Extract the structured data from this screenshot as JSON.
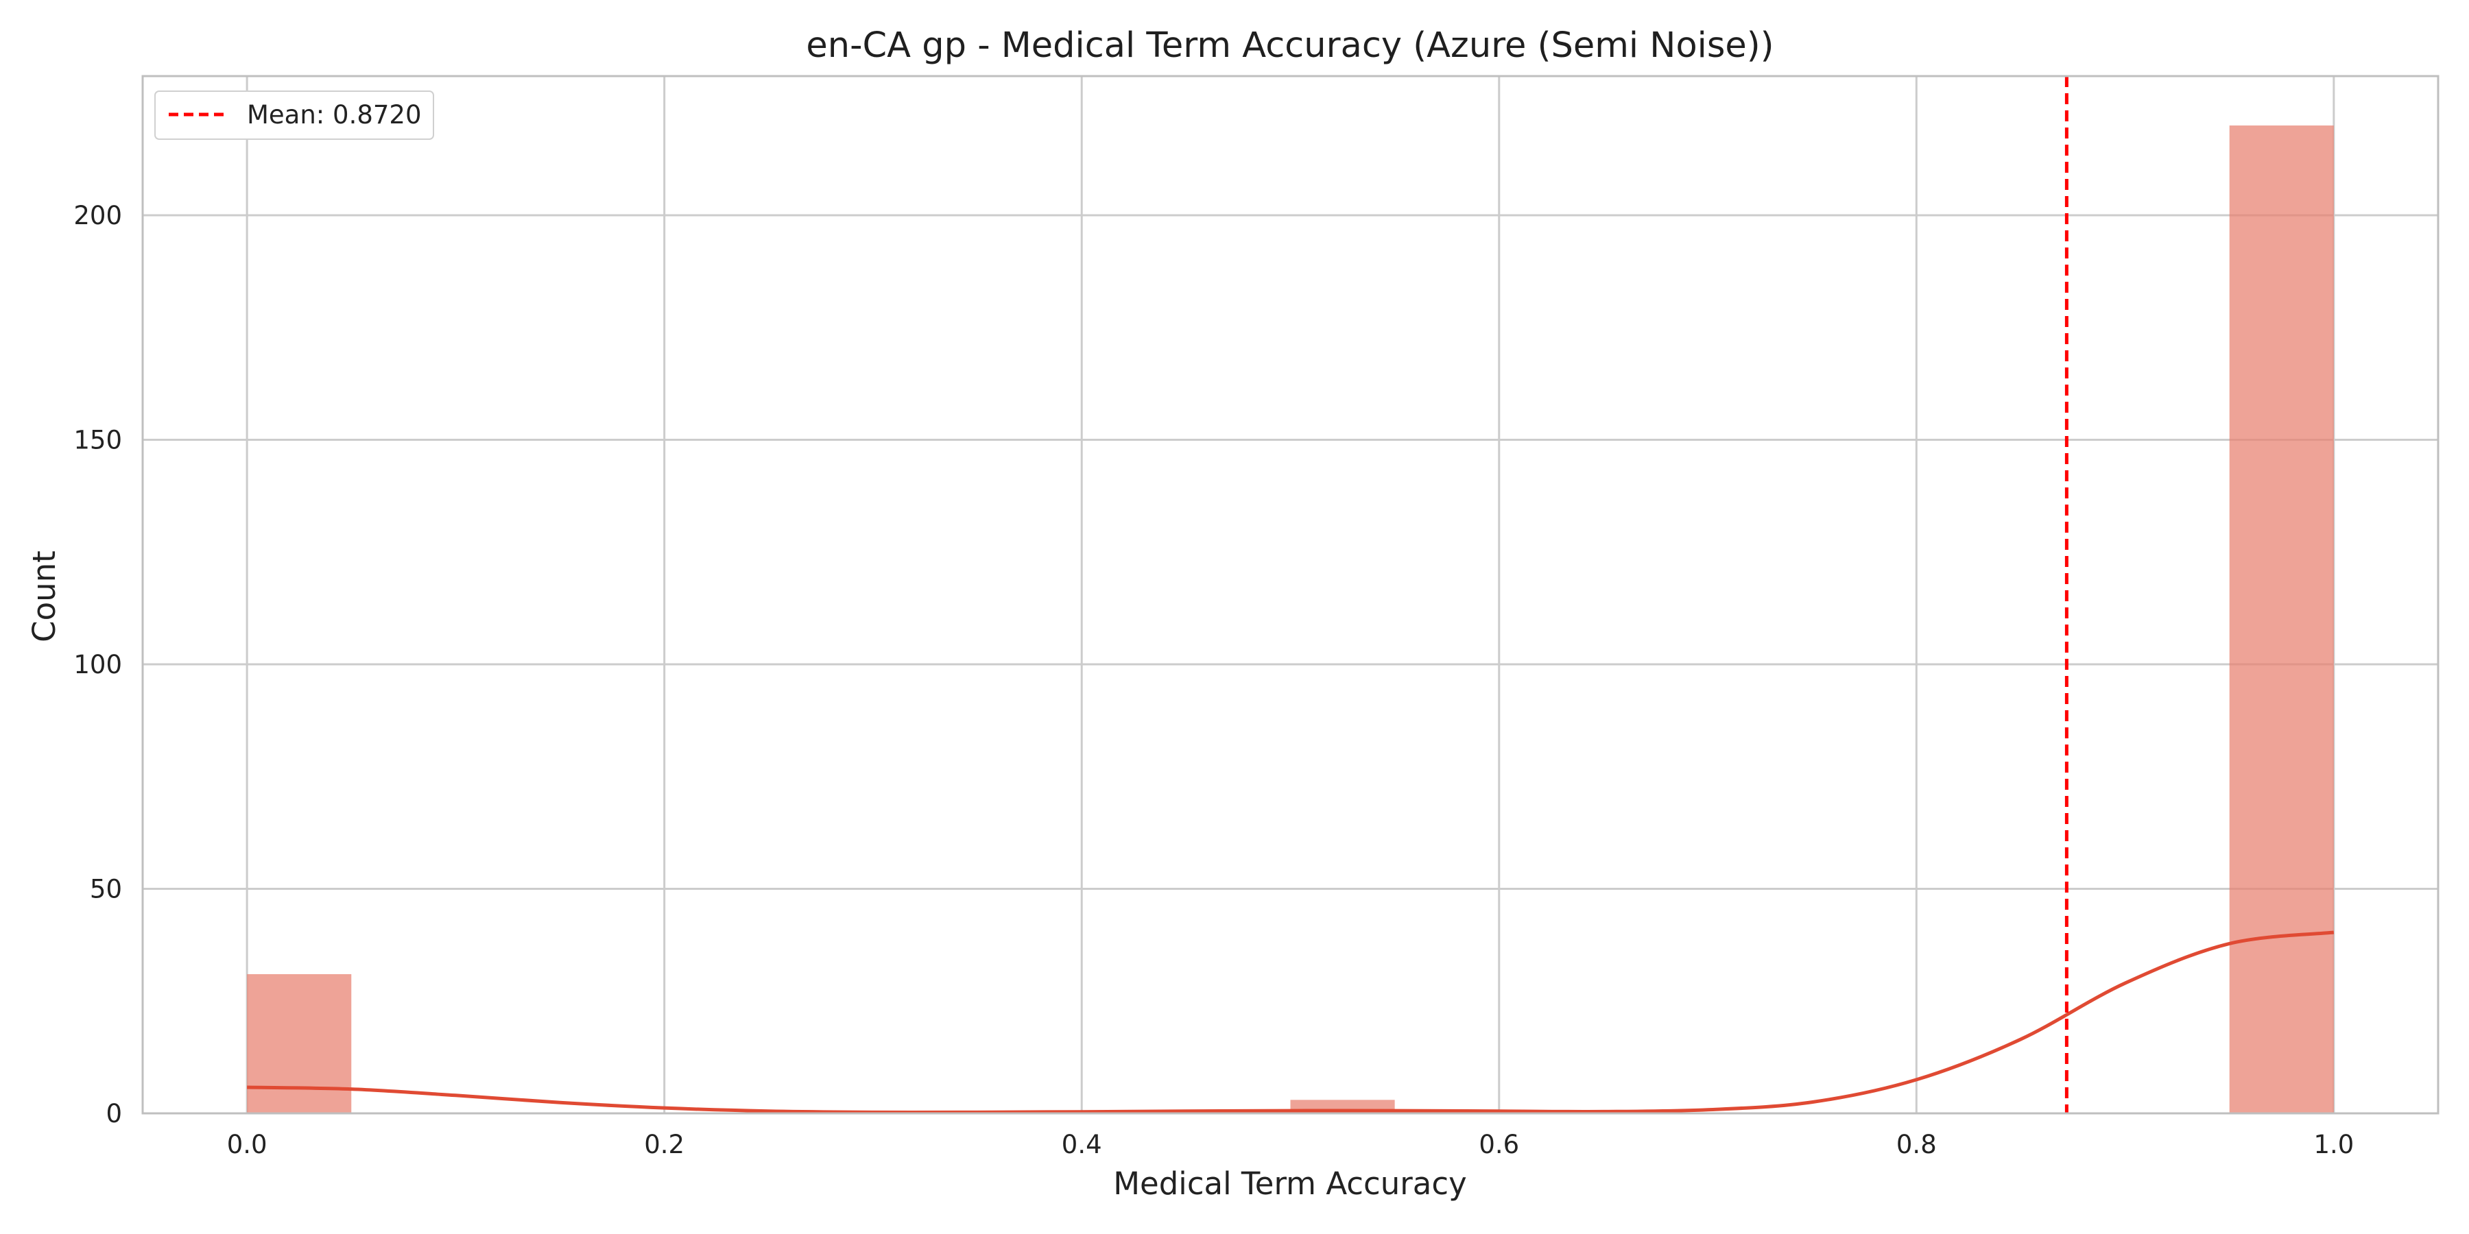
{
  "chart_data": {
    "type": "bar",
    "title": "en-CA gp - Medical Term Accuracy (Azure (Semi Noise))",
    "xlabel": "Medical Term Accuracy",
    "ylabel": "Count",
    "xlim": [
      -0.05,
      1.05
    ],
    "ylim": [
      0,
      231
    ],
    "x_ticks": [
      0.0,
      0.2,
      0.4,
      0.6,
      0.8,
      1.0
    ],
    "x_tick_labels": [
      "0.0",
      "0.2",
      "0.4",
      "0.6",
      "0.8",
      "1.0"
    ],
    "y_ticks": [
      0,
      50,
      100,
      150,
      200
    ],
    "y_tick_labels": [
      "0",
      "50",
      "100",
      "150",
      "200"
    ],
    "grid": true,
    "bins": [
      {
        "start": 0.0,
        "end": 0.05,
        "count": 31
      },
      {
        "start": 0.5,
        "end": 0.55,
        "count": 3
      },
      {
        "start": 0.95,
        "end": 1.0,
        "count": 220
      }
    ],
    "kde": {
      "x": [
        0.0,
        0.05,
        0.1,
        0.15,
        0.2,
        0.25,
        0.3,
        0.35,
        0.4,
        0.45,
        0.5,
        0.55,
        0.6,
        0.65,
        0.7,
        0.75,
        0.8,
        0.85,
        0.9,
        0.95,
        1.0
      ],
      "y": [
        5.8,
        5.4,
        4.0,
        2.4,
        1.2,
        0.5,
        0.25,
        0.25,
        0.35,
        0.5,
        0.6,
        0.6,
        0.5,
        0.4,
        0.8,
        2.5,
        7.5,
        16.5,
        29.0,
        37.8,
        40.3
      ]
    },
    "mean_line": {
      "value": 0.872,
      "label": "Mean: 0.8720"
    },
    "legend_position": "top-left",
    "colors": {
      "bars": "#e8806f",
      "kde": "#e04a33",
      "mean": "#ff0000",
      "grid": "#cccccc",
      "axes": "#bfbfbf"
    }
  }
}
